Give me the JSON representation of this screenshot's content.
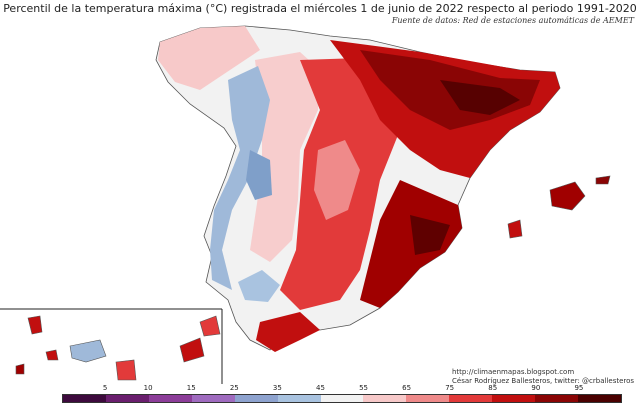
{
  "title": "Percentil de la temperatura máxima (°C) registrada el miércoles 1 de junio de 2022 respecto al periodo 1991-2020",
  "source": "Fuente de datos: Red de estaciones automáticas de AEMET",
  "credits": {
    "url": "http://climaenmapas.blogspot.com",
    "author": "César Rodríguez Ballesteros, twitter: @crballesteros"
  },
  "legend": {
    "ticks": [
      "5",
      "10",
      "15",
      "25",
      "35",
      "45",
      "55",
      "65",
      "75",
      "85",
      "90",
      "95"
    ],
    "colors": [
      "#3d0a3d",
      "#6a1f6e",
      "#8c3d99",
      "#9f6bbf",
      "#8ea3cf",
      "#a9c3e0",
      "#f2f2f2",
      "#f7c9c9",
      "#ef8a8a",
      "#e23a3a",
      "#c10f0f",
      "#8a0505",
      "#4a0000"
    ]
  },
  "palette": {
    "hot": "#a00000",
    "warm": "#e23a3a",
    "mild": "#f7c9c9",
    "neutral": "#f2f2f2",
    "cool": "#9fb9d9",
    "deep": "#4a0000"
  }
}
